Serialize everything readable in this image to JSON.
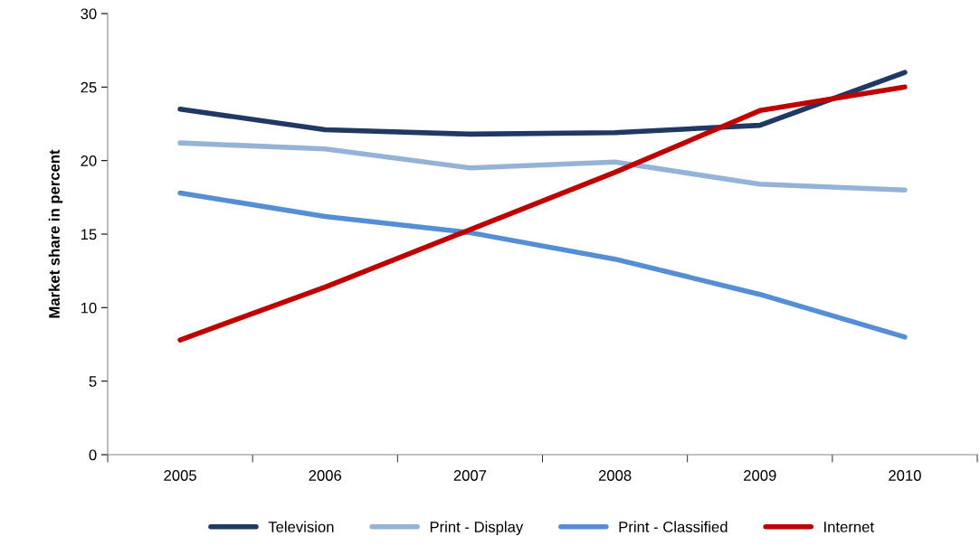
{
  "chart_data": {
    "type": "line",
    "ylabel": "Market share in percent",
    "categories": [
      "2005",
      "2006",
      "2007",
      "2008",
      "2009",
      "2010"
    ],
    "series": [
      {
        "name": "Television",
        "color": "#1f3864",
        "values": [
          23.5,
          22.1,
          21.8,
          21.9,
          22.4,
          26.0
        ]
      },
      {
        "name": "Print - Display",
        "color": "#95b3d7",
        "values": [
          21.2,
          20.8,
          19.5,
          19.9,
          18.4,
          18.0
        ]
      },
      {
        "name": "Print - Classified",
        "color": "#558ed5",
        "values": [
          17.8,
          16.2,
          15.1,
          13.3,
          10.9,
          8.0
        ]
      },
      {
        "name": "Internet",
        "color": "#c00000",
        "values": [
          7.8,
          11.4,
          15.3,
          19.2,
          23.4,
          25.0
        ]
      }
    ],
    "ylim": [
      0,
      30
    ],
    "yticks": [
      0,
      5,
      10,
      15,
      20,
      25,
      30
    ],
    "grid": false,
    "legend": "bottom",
    "marker": "none",
    "line_style": "solid"
  }
}
